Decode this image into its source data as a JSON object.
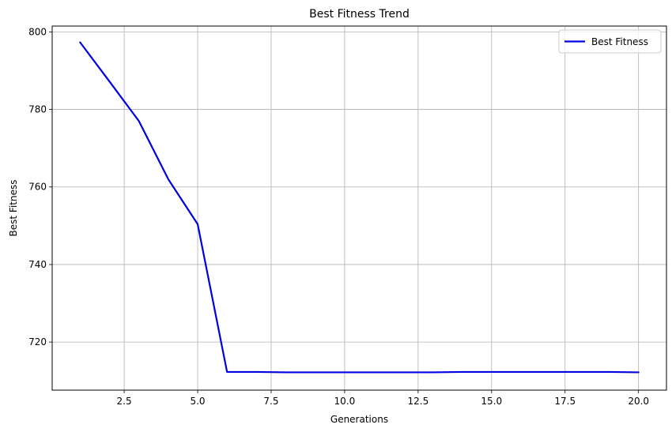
{
  "chart_data": {
    "type": "line",
    "title": "Best Fitness Trend",
    "xlabel": "Generations",
    "ylabel": "Best Fitness",
    "xlim": [
      0.05,
      20.95
    ],
    "ylim": [
      707.6,
      801.5
    ],
    "xticks": [
      2.5,
      5.0,
      7.5,
      10.0,
      12.5,
      15.0,
      17.5,
      20.0
    ],
    "xtick_labels": [
      "2.5",
      "5.0",
      "7.5",
      "10.0",
      "12.5",
      "15.0",
      "17.5",
      "20.0"
    ],
    "yticks": [
      720,
      740,
      760,
      780,
      800
    ],
    "ytick_labels": [
      "720",
      "740",
      "760",
      "780",
      "800"
    ],
    "grid": true,
    "legend_position": "top-right",
    "series": [
      {
        "name": "Best Fitness",
        "color": "#0000e0",
        "x": [
          1,
          2,
          3,
          4,
          5,
          6,
          7,
          8,
          9,
          10,
          11,
          12,
          13,
          14,
          15,
          16,
          17,
          18,
          19,
          20
        ],
        "y": [
          797.3,
          787.2,
          777.0,
          762.0,
          750.4,
          712.3,
          712.3,
          712.2,
          712.2,
          712.2,
          712.2,
          712.2,
          712.2,
          712.3,
          712.3,
          712.3,
          712.3,
          712.3,
          712.3,
          712.2
        ]
      }
    ]
  }
}
